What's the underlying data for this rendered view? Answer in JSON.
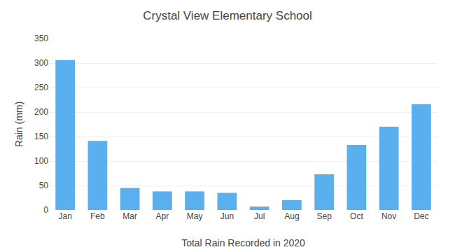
{
  "chart_data": {
    "type": "bar",
    "title": "Crystal View Elementary School",
    "xlabel": "Total Rain Recorded in 2020",
    "ylabel": "Rain (mm)",
    "categories": [
      "Jan",
      "Feb",
      "Mar",
      "Apr",
      "May",
      "Jun",
      "Jul",
      "Aug",
      "Sep",
      "Oct",
      "Nov",
      "Dec"
    ],
    "values": [
      306,
      141,
      45,
      38,
      38,
      35,
      7,
      20,
      73,
      133,
      170,
      216
    ],
    "color": "#5AAFEF",
    "ylim": [
      0,
      350
    ],
    "yticks": [
      0,
      50,
      100,
      150,
      200,
      250,
      300,
      350
    ],
    "grid": true
  }
}
